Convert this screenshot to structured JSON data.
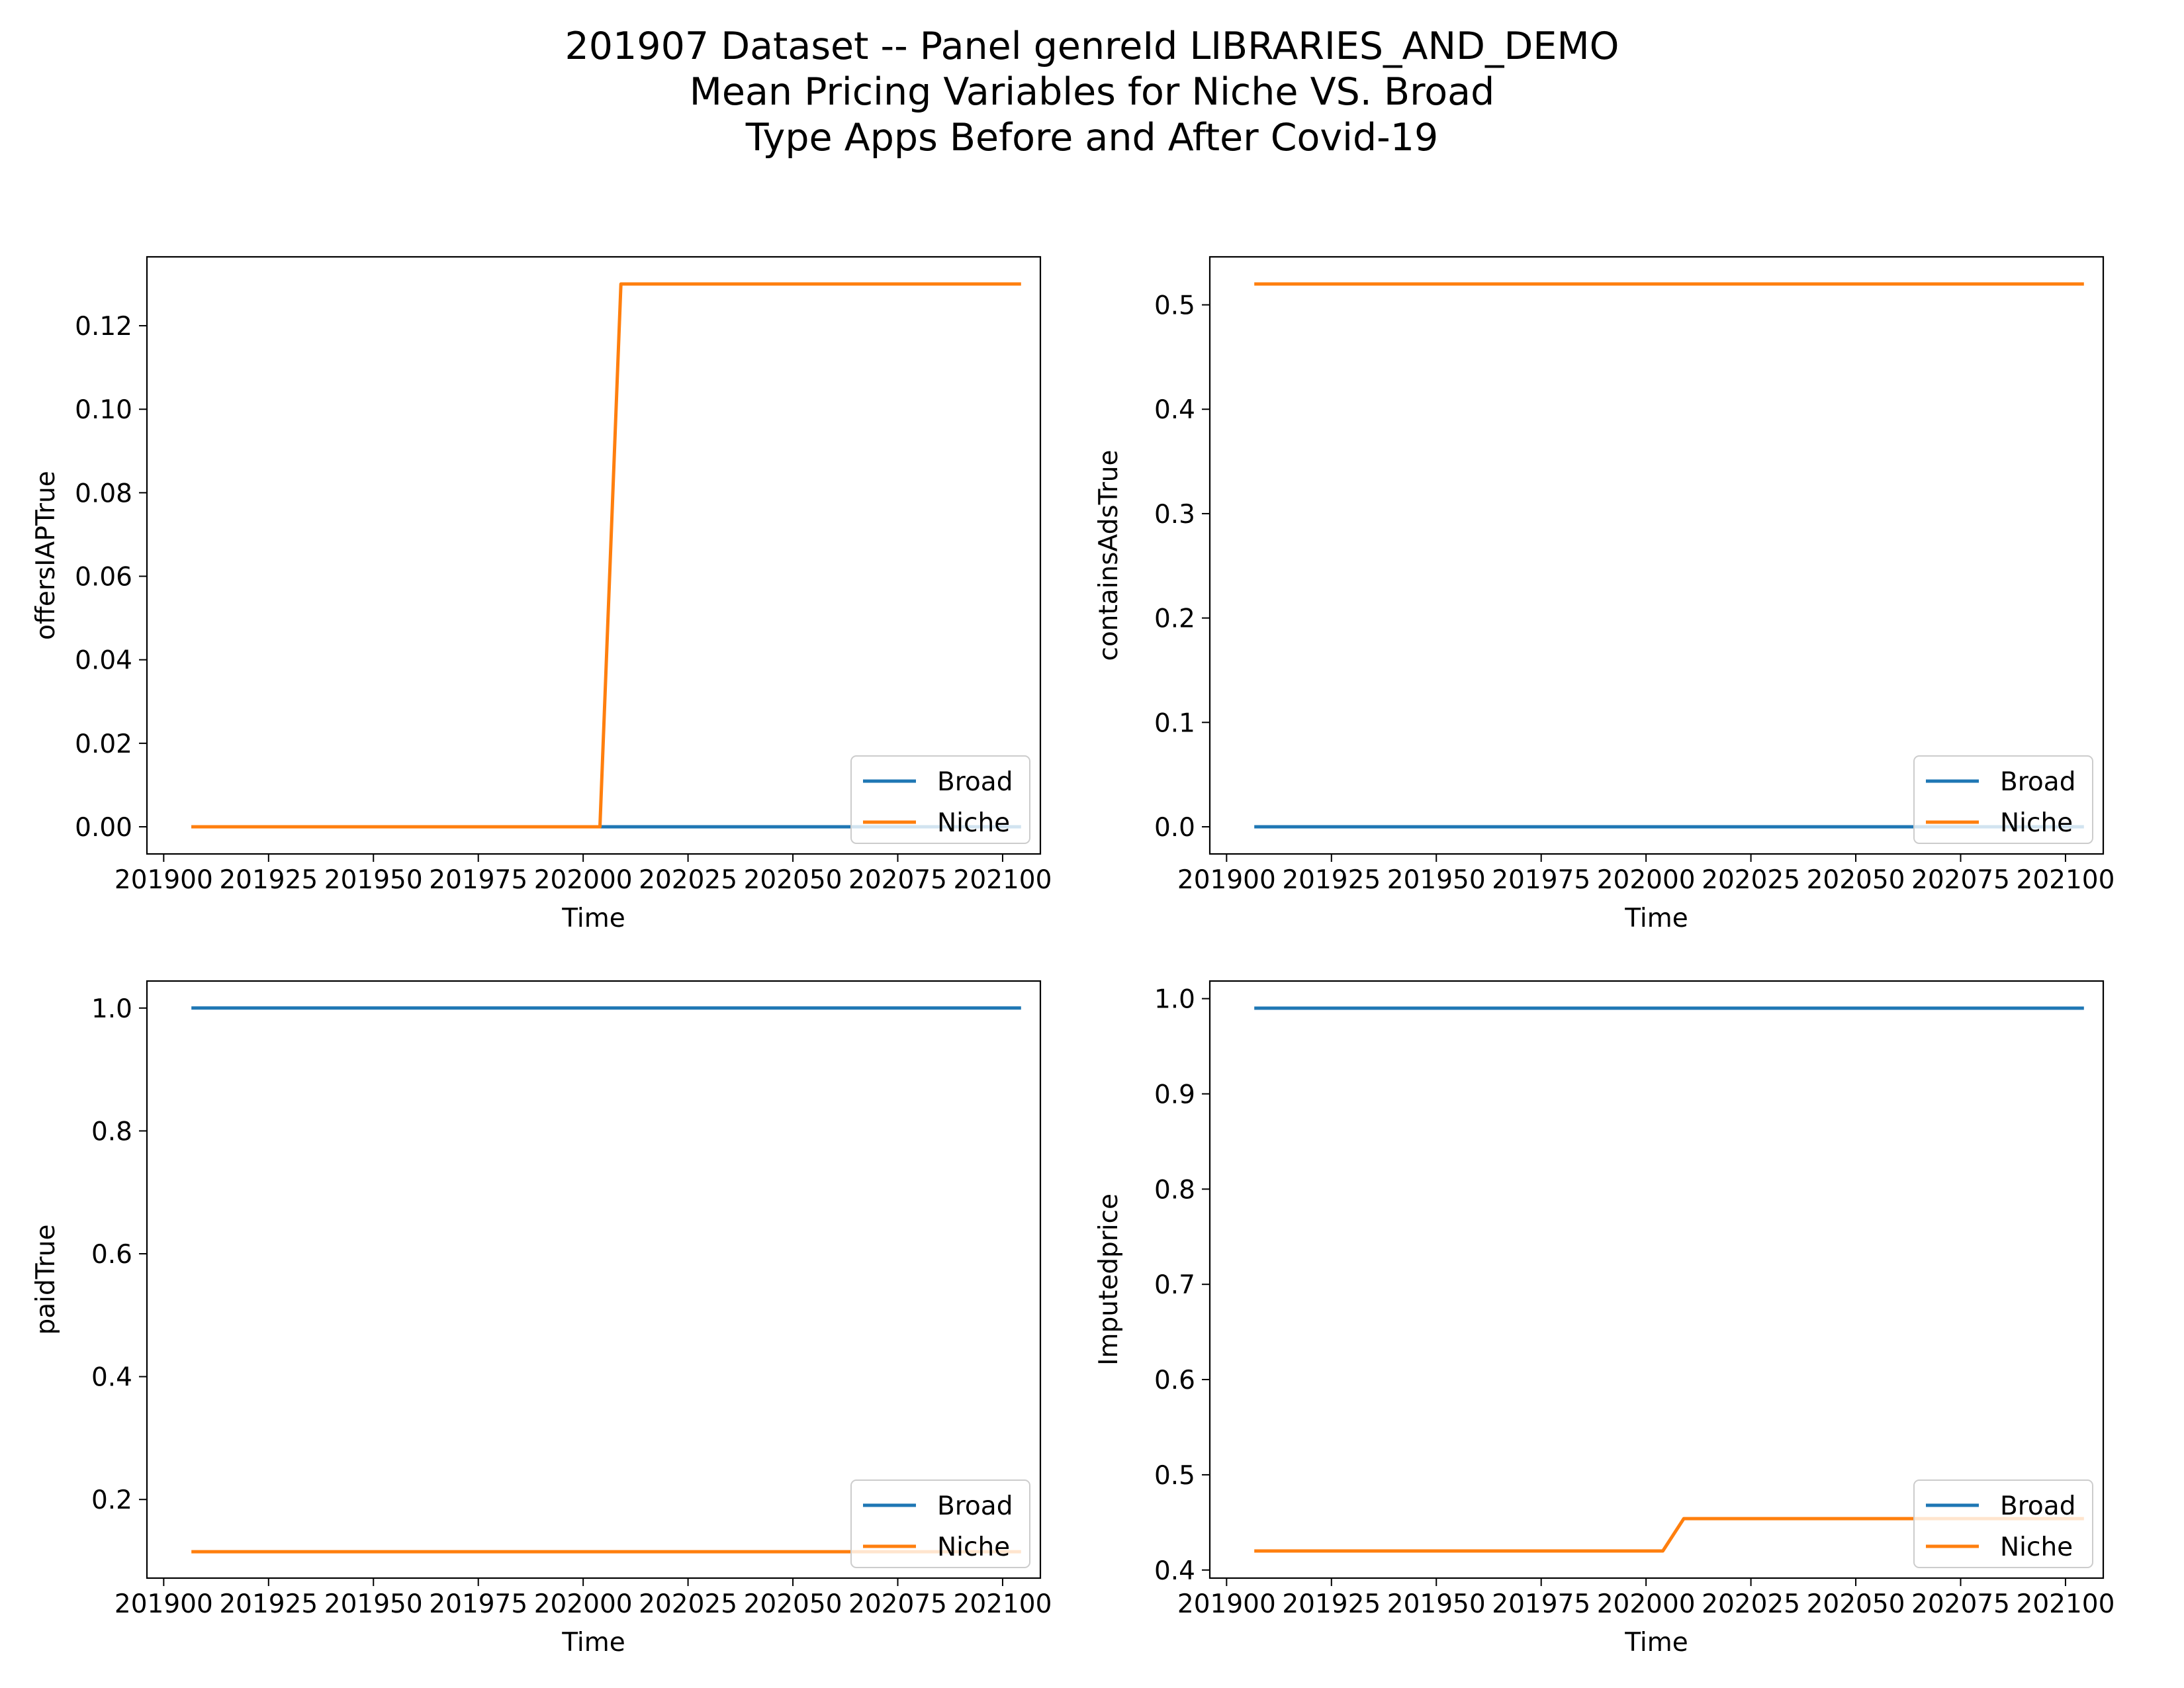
{
  "figure": {
    "title_lines": [
      "201907 Dataset -- Panel genreId LIBRARIES_AND_DEMO",
      "Mean Pricing Variables for Niche VS. Broad",
      "Type Apps Before and After Covid-19"
    ]
  },
  "colors": {
    "Broad": "#1f77b4",
    "Niche": "#ff7f0e"
  },
  "chart_data": [
    {
      "type": "line",
      "xlabel": "Time",
      "ylabel": "offersIAPTrue",
      "xlim": [
        201896,
        202109
      ],
      "ylim": [
        -0.0065,
        0.1365
      ],
      "xticks": [
        "201900",
        "201925",
        "201950",
        "201975",
        "202000",
        "202025",
        "202050",
        "202075",
        "202100"
      ],
      "yticks": [
        "0.00",
        "0.02",
        "0.04",
        "0.06",
        "0.08",
        "0.10",
        "0.12"
      ],
      "legend": "lower right",
      "series": [
        {
          "name": "Broad",
          "x": [
            201907,
            202004,
            202009,
            202104
          ],
          "y": [
            0.0,
            0.0,
            0.0,
            0.0
          ]
        },
        {
          "name": "Niche",
          "x": [
            201907,
            202004,
            202009,
            202104
          ],
          "y": [
            0.0,
            0.0,
            0.13,
            0.13
          ]
        }
      ]
    },
    {
      "type": "line",
      "xlabel": "Time",
      "ylabel": "containsAdsTrue",
      "xlim": [
        201896,
        202109
      ],
      "ylim": [
        -0.026,
        0.546
      ],
      "xticks": [
        "201900",
        "201925",
        "201950",
        "201975",
        "202000",
        "202025",
        "202050",
        "202075",
        "202100"
      ],
      "yticks": [
        "0.0",
        "0.1",
        "0.2",
        "0.3",
        "0.4",
        "0.5"
      ],
      "legend": "lower right",
      "series": [
        {
          "name": "Broad",
          "x": [
            201907,
            202004,
            202009,
            202104
          ],
          "y": [
            0.0,
            0.0,
            0.0,
            0.0
          ]
        },
        {
          "name": "Niche",
          "x": [
            201907,
            202004,
            202009,
            202104
          ],
          "y": [
            0.52,
            0.52,
            0.52,
            0.52
          ]
        }
      ]
    },
    {
      "type": "line",
      "xlabel": "Time",
      "ylabel": "paidTrue",
      "xlim": [
        201896,
        202109
      ],
      "ylim": [
        0.072,
        1.044
      ],
      "xticks": [
        "201900",
        "201925",
        "201950",
        "201975",
        "202000",
        "202025",
        "202050",
        "202075",
        "202100"
      ],
      "yticks": [
        "0.2",
        "0.4",
        "0.6",
        "0.8",
        "1.0"
      ],
      "legend": "lower right",
      "series": [
        {
          "name": "Broad",
          "x": [
            201907,
            202004,
            202009,
            202104
          ],
          "y": [
            1.0,
            1.0,
            1.0,
            1.0
          ]
        },
        {
          "name": "Niche",
          "x": [
            201907,
            202004,
            202009,
            202104
          ],
          "y": [
            0.115,
            0.115,
            0.115,
            0.115
          ]
        }
      ]
    },
    {
      "type": "line",
      "xlabel": "Time",
      "ylabel": "Imputedprice",
      "xlim": [
        201896,
        202109
      ],
      "ylim": [
        0.3915,
        1.0185
      ],
      "xticks": [
        "201900",
        "201925",
        "201950",
        "201975",
        "202000",
        "202025",
        "202050",
        "202075",
        "202100"
      ],
      "yticks": [
        "0.4",
        "0.5",
        "0.6",
        "0.7",
        "0.8",
        "0.9",
        "1.0"
      ],
      "legend": "lower right",
      "series": [
        {
          "name": "Broad",
          "x": [
            201907,
            202004,
            202009,
            202104
          ],
          "y": [
            0.99,
            0.99,
            0.99,
            0.99
          ]
        },
        {
          "name": "Niche",
          "x": [
            201907,
            202004,
            202009,
            202104
          ],
          "y": [
            0.42,
            0.42,
            0.454,
            0.454
          ]
        }
      ]
    }
  ]
}
